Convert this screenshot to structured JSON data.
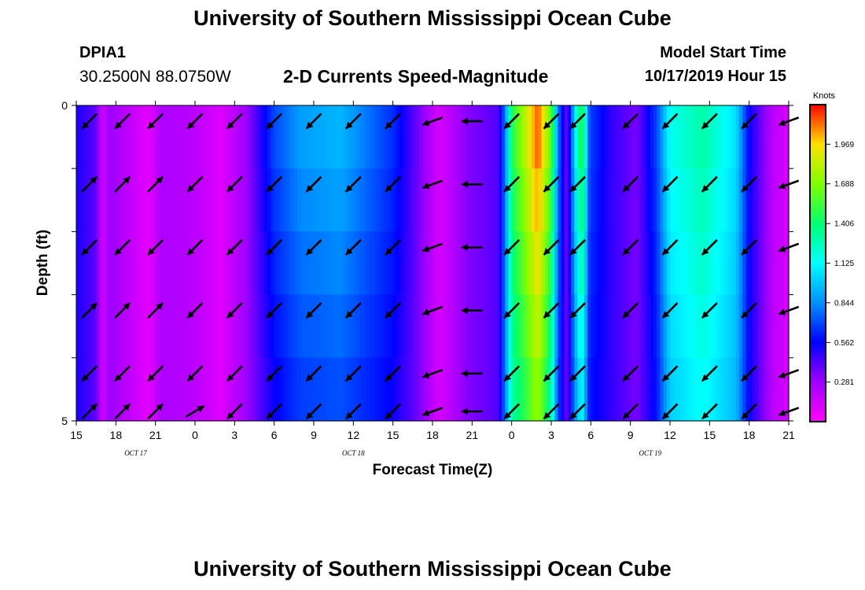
{
  "header": {
    "title": "University of Southern Mississippi Ocean Cube",
    "station_id": "DPIA1",
    "coordinates": "30.2500N 88.0750W",
    "chart_title": "2-D Currents Speed-Magnitude",
    "start_label": "Model Start Time",
    "start_value": "10/17/2019 Hour 15"
  },
  "footer": {
    "title": "University of Southern Mississippi Ocean Cube"
  },
  "chart_data": {
    "type": "heatmap",
    "title": "2-D Currents Speed-Magnitude",
    "xlabel": "Forecast Time(Z)",
    "ylabel": "Depth (ft)",
    "x_range": [
      0,
      54
    ],
    "x_unit": "hours after 10/17/2019 15Z",
    "ylim": [
      0,
      5
    ],
    "y_ticks": [
      0,
      5
    ],
    "x_tick_labels": [
      "15",
      "18",
      "21",
      "0",
      "3",
      "6",
      "9",
      "12",
      "15",
      "18",
      "21",
      "0",
      "3",
      "6",
      "9",
      "12",
      "15",
      "18",
      "21"
    ],
    "date_labels": [
      {
        "text": "OCT 17",
        "hour": 4.5
      },
      {
        "text": "OCT 18",
        "hour": 21
      },
      {
        "text": "OCT 19",
        "hour": 43.5
      }
    ],
    "colorbar": {
      "title": "Knots",
      "ticks": [
        "1.969",
        "1.688",
        "1.406",
        "1.125",
        "0.844",
        "0.562",
        "0.281"
      ],
      "tick_values": [
        1.969,
        1.688,
        1.406,
        1.125,
        0.844,
        0.562,
        0.281
      ],
      "min": 0,
      "max": 2.25
    },
    "depth_layers": 5,
    "speed_profile": [
      {
        "h": 0,
        "base": 0.52,
        "top": 0
      },
      {
        "h": 1.5,
        "base": 0.4,
        "top": 0
      },
      {
        "h": 2.0,
        "base": 0.12,
        "top": 0
      },
      {
        "h": 2.5,
        "base": 0.3,
        "top": 0
      },
      {
        "h": 3.5,
        "base": 0.22,
        "top": 0
      },
      {
        "h": 5.5,
        "base": 0.08,
        "top": 0
      },
      {
        "h": 6.5,
        "base": 0.25,
        "top": 0
      },
      {
        "h": 9.0,
        "base": 0.2,
        "top": 0
      },
      {
        "h": 11,
        "base": 0.1,
        "top": 0
      },
      {
        "h": 13,
        "base": 0.3,
        "top": 0
      },
      {
        "h": 15,
        "base": 0.55,
        "top": 0.15
      },
      {
        "h": 17,
        "base": 0.68,
        "top": 0.2
      },
      {
        "h": 20,
        "base": 0.72,
        "top": 0.22
      },
      {
        "h": 24,
        "base": 0.55,
        "top": 0.1
      },
      {
        "h": 26,
        "base": 0.35,
        "top": 0
      },
      {
        "h": 27.5,
        "base": 0.12,
        "top": 0
      },
      {
        "h": 29.5,
        "base": 0.32,
        "top": 0
      },
      {
        "h": 32,
        "base": 0.42,
        "top": 0
      },
      {
        "h": 32.5,
        "base": 0.8,
        "top": 0
      },
      {
        "h": 33,
        "base": 1.3,
        "top": 0.15
      },
      {
        "h": 34,
        "base": 1.5,
        "top": 0.3
      },
      {
        "h": 35,
        "base": 1.75,
        "top": 0.4
      },
      {
        "h": 36,
        "base": 1.3,
        "top": 0.3
      },
      {
        "h": 36.5,
        "base": 0.7,
        "top": 0.1
      },
      {
        "h": 37.2,
        "base": 0.35,
        "top": 0
      },
      {
        "h": 37.8,
        "base": 0.85,
        "top": 0.2
      },
      {
        "h": 38.3,
        "base": 1.15,
        "top": 0.4
      },
      {
        "h": 38.9,
        "base": 0.6,
        "top": 0.1
      },
      {
        "h": 40.5,
        "base": 0.48,
        "top": 0
      },
      {
        "h": 42.5,
        "base": 0.35,
        "top": 0
      },
      {
        "h": 44,
        "base": 0.6,
        "top": 0.1
      },
      {
        "h": 45,
        "base": 1.0,
        "top": 0.15
      },
      {
        "h": 47.5,
        "base": 1.15,
        "top": 0.15
      },
      {
        "h": 50,
        "base": 0.95,
        "top": 0.1
      },
      {
        "h": 51,
        "base": 0.55,
        "top": 0
      },
      {
        "h": 52,
        "base": 0.35,
        "top": 0
      },
      {
        "h": 53,
        "base": 0.18,
        "top": 0
      },
      {
        "h": 54,
        "base": 0.12,
        "top": 0
      }
    ],
    "arrow_columns": [
      {
        "h": 1,
        "dirs": [
          135,
          315,
          135,
          315,
          135,
          315
        ]
      },
      {
        "h": 3.5,
        "dirs": [
          135,
          315,
          135,
          315,
          135,
          315
        ]
      },
      {
        "h": 6,
        "dirs": [
          135,
          315,
          135,
          315,
          135,
          315
        ]
      },
      {
        "h": 9,
        "dirs": [
          135,
          135,
          135,
          135,
          135,
          330
        ]
      },
      {
        "h": 12,
        "dirs": [
          135,
          135,
          135,
          135,
          135,
          135
        ]
      },
      {
        "h": 15,
        "dirs": [
          135,
          135,
          135,
          135,
          135,
          135
        ]
      },
      {
        "h": 18,
        "dirs": [
          135,
          135,
          135,
          135,
          135,
          135
        ]
      },
      {
        "h": 21,
        "dirs": [
          135,
          135,
          135,
          135,
          135,
          135
        ]
      },
      {
        "h": 24,
        "dirs": [
          135,
          135,
          135,
          135,
          135,
          135
        ]
      },
      {
        "h": 27,
        "dirs": [
          160,
          160,
          160,
          160,
          160,
          160
        ]
      },
      {
        "h": 30,
        "dirs": [
          180,
          180,
          180,
          180,
          180,
          180
        ]
      },
      {
        "h": 33,
        "dirs": [
          135,
          135,
          135,
          135,
          135,
          135
        ]
      },
      {
        "h": 36,
        "dirs": [
          135,
          135,
          135,
          135,
          135,
          135
        ]
      },
      {
        "h": 38,
        "dirs": [
          135,
          135,
          135,
          135,
          135,
          135
        ]
      },
      {
        "h": 42,
        "dirs": [
          135,
          135,
          135,
          135,
          135,
          135
        ]
      },
      {
        "h": 45,
        "dirs": [
          135,
          135,
          135,
          135,
          135,
          135
        ]
      },
      {
        "h": 48,
        "dirs": [
          135,
          135,
          135,
          135,
          135,
          135
        ]
      },
      {
        "h": 51,
        "dirs": [
          135,
          135,
          135,
          135,
          135,
          135
        ]
      },
      {
        "h": 54,
        "dirs": [
          160,
          160,
          160,
          160,
          160,
          160
        ]
      }
    ]
  }
}
